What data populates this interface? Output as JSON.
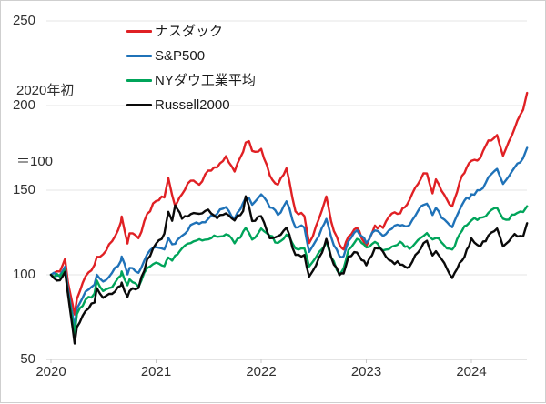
{
  "annotation": {
    "line1": "2020年初",
    "line2": "＝100"
  },
  "axes": {
    "y_ticks": [
      250,
      200,
      150,
      100,
      50
    ],
    "x_ticks": [
      "2020",
      "2021",
      "2022",
      "2023",
      "2024"
    ]
  },
  "colors": {
    "nasdaq": "#e02024",
    "sp500": "#1f72b8",
    "dow": "#00a45a",
    "russell": "#0a0a0a",
    "gridline": "#e4e4e4",
    "axis": "#c8c8c8",
    "text": "#303030"
  },
  "chart_data": {
    "type": "line",
    "title": "",
    "xlabel": "",
    "ylabel": "",
    "note": "2020年初＝100 (indexed to 100 at start of 2020)",
    "legend_position": "top-left-inside",
    "grid": "horizontal",
    "ylim": [
      50,
      250
    ],
    "xlim": [
      2020.0,
      2024.55
    ],
    "x_ticks": [
      2020,
      2021,
      2022,
      2023,
      2024
    ],
    "y_ticks": [
      50,
      100,
      150,
      200,
      250
    ],
    "x_unit": "year (decimal)",
    "x": [
      2020.0,
      2020.085,
      2020.134,
      2020.162,
      2020.225,
      2020.247,
      2020.329,
      2020.414,
      2020.436,
      2020.496,
      2020.581,
      2020.666,
      2020.673,
      2020.728,
      2020.748,
      2020.833,
      2020.915,
      2021.0,
      2021.079,
      2021.117,
      2021.153,
      2021.182,
      2021.247,
      2021.329,
      2021.411,
      2021.496,
      2021.581,
      2021.665,
      2021.747,
      2021.829,
      2021.853,
      2021.884,
      2021.914,
      2022.0,
      2022.082,
      2022.159,
      2022.241,
      2022.326,
      2022.411,
      2022.456,
      2022.493,
      2022.578,
      2022.62,
      2022.665,
      2022.745,
      2022.784,
      2022.83,
      2022.912,
      2023.0,
      2023.082,
      2023.159,
      2023.243,
      2023.323,
      2023.411,
      2023.493,
      2023.545,
      2023.577,
      2023.63,
      2023.662,
      2023.742,
      2023.817,
      2023.912,
      2024.0,
      2024.085,
      2024.162,
      2024.244,
      2024.301,
      2024.329,
      2024.411,
      2024.493,
      2024.53
    ],
    "series": [
      {
        "id": "nasdaq",
        "name": "ナスダック",
        "color": "#e02024",
        "values": [
          100,
          102.0,
          109.4,
          95.5,
          76.5,
          85.8,
          99.1,
          105.8,
          110.6,
          112.1,
          119.8,
          131.2,
          134.4,
          118.5,
          124.5,
          121.6,
          136.0,
          143.6,
          145.7,
          157.1,
          147.0,
          140.5,
          147.6,
          155.6,
          153.2,
          161.6,
          163.5,
          170.1,
          161.0,
          172.7,
          178.1,
          179.0,
          173.2,
          174.4,
          158.7,
          153.3,
          162.9,
          137.5,
          134.6,
          118.7,
          122.9,
          138.1,
          146.3,
          131.7,
          117.9,
          115.0,
          122.5,
          127.8,
          116.7,
          129.1,
          127.7,
          136.2,
          136.3,
          144.2,
          153.7,
          160.0,
          159.9,
          148.1,
          156.4,
          147.3,
          140.4,
          158.6,
          167.3,
          169.0,
          179.4,
          182.6,
          170.3,
          174.5,
          186.5,
          197.6,
          207.5
        ]
      },
      {
        "id": "sp500",
        "name": "S&P500",
        "color": "#1f72b8",
        "values": [
          100,
          99.8,
          104.8,
          91.4,
          69.3,
          80.0,
          90.1,
          94.2,
          100.0,
          96.0,
          101.2,
          108.3,
          110.8,
          100.2,
          104.1,
          101.2,
          112.1,
          116.3,
          115.0,
          121.8,
          118.0,
          118.3,
          123.0,
          129.4,
          130.1,
          133.0,
          136.0,
          140.0,
          133.3,
          142.5,
          145.5,
          145.4,
          141.4,
          147.5,
          139.8,
          135.4,
          143.4,
          127.9,
          127.9,
          113.5,
          117.2,
          127.8,
          133.0,
          122.4,
          111.0,
          110.9,
          119.8,
          126.3,
          118.8,
          126.2,
          122.9,
          127.2,
          129.1,
          129.4,
          137.8,
          141.3,
          142.0,
          135.3,
          139.5,
          132.7,
          128.1,
          141.4,
          147.6,
          150.0,
          157.7,
          162.6,
          153.7,
          155.9,
          163.4,
          169.0,
          175.0
        ]
      },
      {
        "id": "ny-dow",
        "name": "NYダウ工業平均",
        "color": "#00a45a",
        "values": [
          100,
          99.0,
          102.8,
          89.0,
          65.1,
          76.8,
          85.3,
          88.9,
          96.6,
          90.4,
          92.6,
          99.6,
          102.0,
          93.8,
          97.3,
          92.9,
          103.9,
          107.2,
          105.1,
          110.2,
          108.4,
          111.4,
          115.6,
          118.7,
          121.0,
          120.9,
          122.4,
          123.9,
          118.6,
          125.5,
          127.7,
          124.8,
          120.8,
          127.3,
          123.1,
          118.8,
          123.7,
          115.6,
          115.6,
          104.9,
          107.8,
          115.1,
          119.7,
          110.4,
          100.7,
          103.8,
          114.7,
          121.2,
          116.2,
          119.4,
          114.4,
          116.6,
          119.5,
          115.3,
          120.6,
          122.9,
          124.6,
          120.9,
          121.7,
          117.4,
          114.9,
          126.0,
          132.1,
          133.7,
          136.6,
          139.5,
          133.1,
          132.5,
          135.6,
          137.1,
          140.5
        ]
      },
      {
        "id": "russell2000",
        "name": "Russell2000",
        "color": "#0a0a0a",
        "values": [
          100,
          96.7,
          101.7,
          88.5,
          59.4,
          69.1,
          78.6,
          83.6,
          92.1,
          86.4,
          88.7,
          93.6,
          95.4,
          87.0,
          90.4,
          92.2,
          109.1,
          118.4,
          124.3,
          137.2,
          131.9,
          141.0,
          133.1,
          135.8,
          136.0,
          138.5,
          133.4,
          136.3,
          132.1,
          137.7,
          146.4,
          140.4,
          131.8,
          134.6,
          121.6,
          122.8,
          127.8,
          111.7,
          111.7,
          98.9,
          102.4,
          113.0,
          121.2,
          110.5,
          99.8,
          100.8,
          110.7,
          113.1,
          105.6,
          115.8,
          113.7,
          108.0,
          106.0,
          104.9,
          113.2,
          118.7,
          120.1,
          111.4,
          113.9,
          107.0,
          98.1,
          108.4,
          121.5,
          116.7,
          123.2,
          127.3,
          116.7,
          118.3,
          124.1,
          122.7,
          130.5
        ]
      }
    ]
  }
}
